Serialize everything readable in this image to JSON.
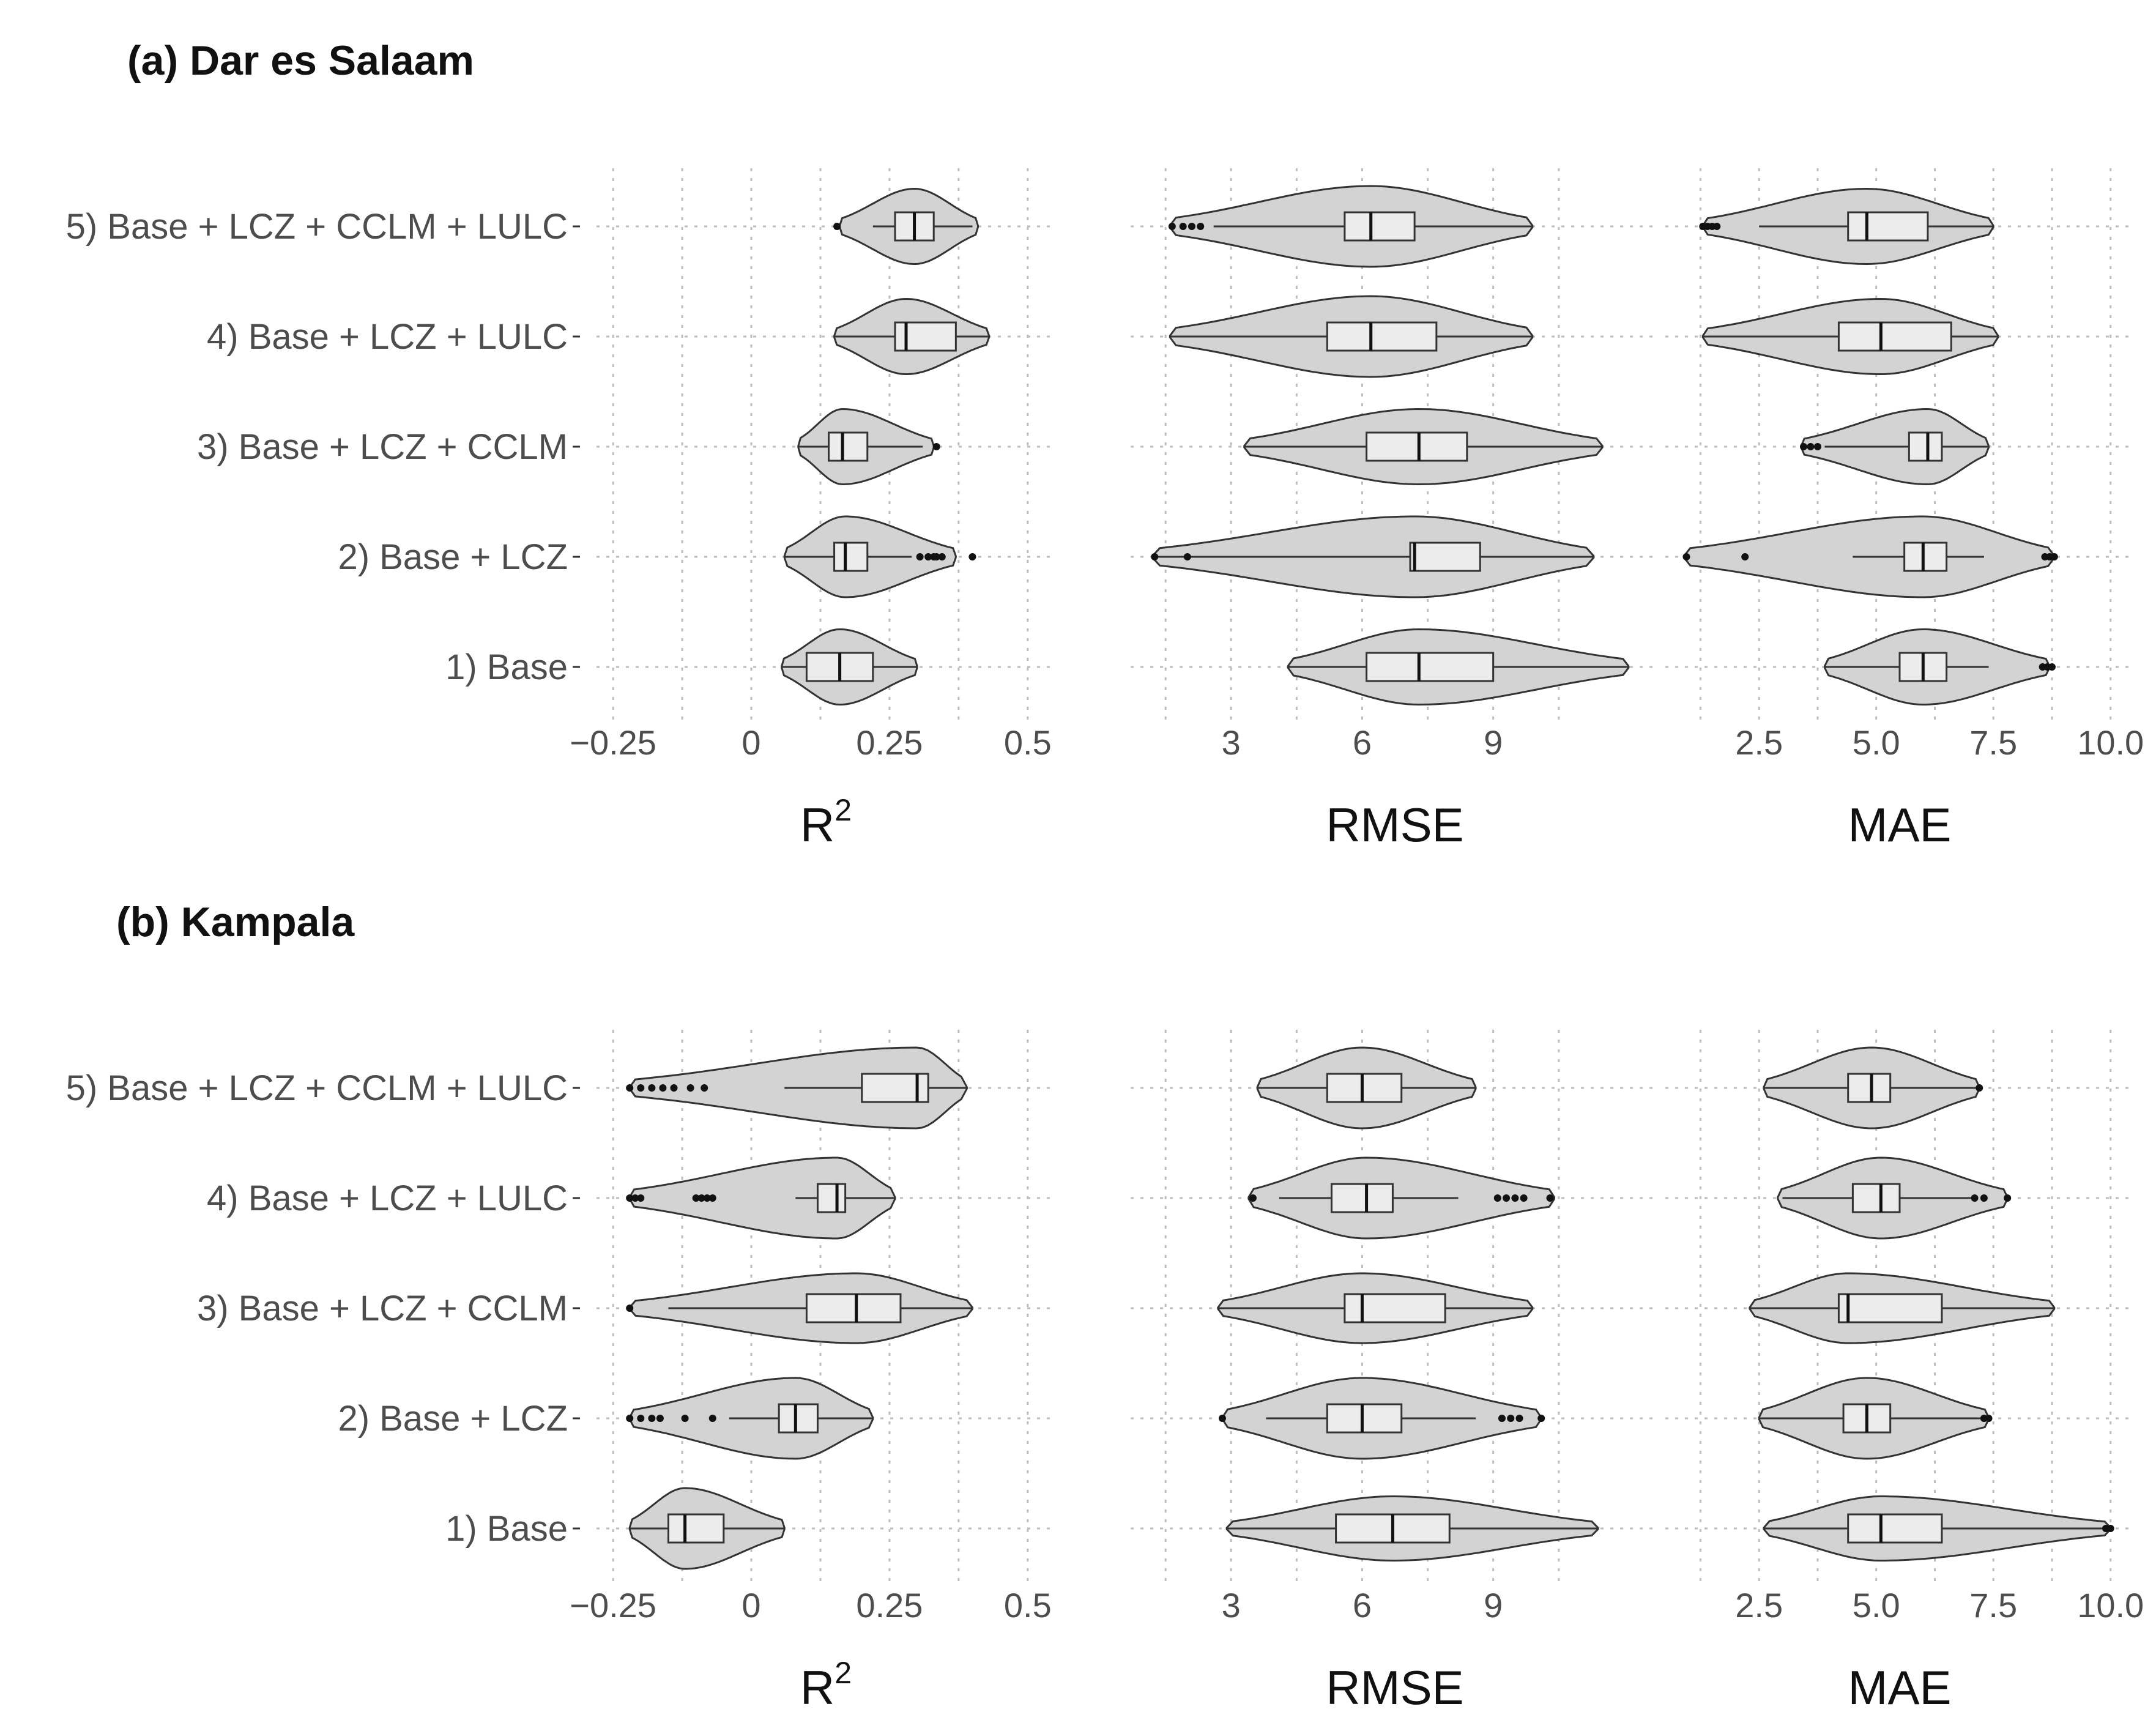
{
  "chart_data": [
    {
      "type": "violin",
      "title": "(a) Dar es Salaam",
      "categories": [
        "5) Base + LCZ + CCLM + LULC",
        "4) Base + LCZ + LULC",
        "3) Base + LCZ + CCLM",
        "2) Base + LCZ",
        "1) Base"
      ],
      "panels": [
        {
          "xlabel": "R",
          "xlabel_sup": "2",
          "xlim": [
            -0.28,
            0.55
          ],
          "ticks": [
            -0.25,
            0,
            0.25,
            0.5
          ],
          "tick_labels": [
            "−0.25",
            "0",
            "0.25",
            "0.5"
          ],
          "rows": [
            {
              "min": 0.16,
              "max": 0.41,
              "q1": 0.26,
              "median": 0.295,
              "q3": 0.33,
              "wlo": 0.22,
              "whi": 0.4,
              "width": 0.55,
              "outliers": [
                0.155
              ]
            },
            {
              "min": 0.15,
              "max": 0.43,
              "q1": 0.26,
              "median": 0.28,
              "q3": 0.37,
              "wlo": 0.15,
              "whi": 0.43,
              "width": 0.55
            },
            {
              "min": 0.085,
              "max": 0.33,
              "q1": 0.14,
              "median": 0.165,
              "q3": 0.21,
              "wlo": 0.085,
              "whi": 0.31,
              "width": 0.55,
              "outliers": [
                0.335
              ]
            },
            {
              "min": 0.06,
              "max": 0.37,
              "q1": 0.15,
              "median": 0.17,
              "q3": 0.21,
              "wlo": 0.06,
              "whi": 0.29,
              "width": 0.6,
              "outliers": [
                0.305,
                0.32,
                0.33,
                0.335,
                0.345,
                0.4
              ]
            },
            {
              "min": 0.055,
              "max": 0.3,
              "q1": 0.1,
              "median": 0.16,
              "q3": 0.22,
              "wlo": 0.055,
              "whi": 0.3,
              "width": 0.55
            }
          ]
        },
        {
          "xlabel": "RMSE",
          "xlabel_sup": "",
          "xlim": [
            0.7,
            12.8
          ],
          "ticks": [
            3,
            6,
            9
          ],
          "tick_labels": [
            "3",
            "6",
            "9"
          ],
          "rows": [
            {
              "min": 1.6,
              "max": 9.9,
              "q1": 5.6,
              "median": 6.2,
              "q3": 7.2,
              "wlo": 2.6,
              "whi": 9.9,
              "width": 0.6,
              "outliers": [
                1.65,
                1.9,
                2.1,
                2.3
              ]
            },
            {
              "min": 1.6,
              "max": 9.9,
              "q1": 5.2,
              "median": 6.2,
              "q3": 7.7,
              "wlo": 1.6,
              "whi": 9.9,
              "width": 0.6
            },
            {
              "min": 3.3,
              "max": 11.5,
              "q1": 6.1,
              "median": 7.3,
              "q3": 8.4,
              "wlo": 3.3,
              "whi": 11.5,
              "width": 0.55
            },
            {
              "min": 1.2,
              "max": 11.3,
              "q1": 7.1,
              "median": 7.2,
              "q3": 8.7,
              "wlo": 1.2,
              "whi": 11.3,
              "width": 0.6,
              "outliers": [
                1.25,
                2.0
              ]
            },
            {
              "min": 4.3,
              "max": 12.1,
              "q1": 6.1,
              "median": 7.3,
              "q3": 9.0,
              "wlo": 4.3,
              "whi": 12.1,
              "width": 0.55
            }
          ]
        },
        {
          "xlabel": "MAE",
          "xlabel_sup": "",
          "xlim": [
            0.5,
            10.5
          ],
          "ticks": [
            2.5,
            5.0,
            7.5,
            10.0
          ],
          "tick_labels": [
            "2.5",
            "5.0",
            "7.5",
            "10.0"
          ],
          "rows": [
            {
              "min": 1.3,
              "max": 7.5,
              "q1": 4.4,
              "median": 4.8,
              "q3": 6.1,
              "wlo": 2.5,
              "whi": 7.5,
              "width": 0.55,
              "outliers": [
                1.3,
                1.4,
                1.5,
                1.6
              ]
            },
            {
              "min": 1.3,
              "max": 7.6,
              "q1": 4.2,
              "median": 5.1,
              "q3": 6.6,
              "wlo": 1.3,
              "whi": 7.6,
              "width": 0.55
            },
            {
              "min": 3.4,
              "max": 7.4,
              "q1": 5.7,
              "median": 6.1,
              "q3": 6.4,
              "wlo": 3.9,
              "whi": 7.4,
              "width": 0.55,
              "outliers": [
                3.45,
                3.6,
                3.75
              ]
            },
            {
              "min": 0.9,
              "max": 8.8,
              "q1": 5.6,
              "median": 6.0,
              "q3": 6.5,
              "wlo": 4.5,
              "whi": 7.3,
              "width": 0.6,
              "outliers": [
                0.95,
                2.2,
                8.6,
                8.7,
                8.8
              ]
            },
            {
              "min": 3.9,
              "max": 8.7,
              "q1": 5.5,
              "median": 6.0,
              "q3": 6.5,
              "wlo": 3.9,
              "whi": 7.4,
              "width": 0.55,
              "outliers": [
                8.55,
                8.65,
                8.75
              ]
            }
          ]
        }
      ]
    },
    {
      "type": "violin",
      "title": "(b) Kampala",
      "categories": [
        "5) Base + LCZ + CCLM + LULC",
        "4) Base + LCZ + LULC",
        "3) Base + LCZ + CCLM",
        "2) Base + LCZ",
        "1) Base"
      ],
      "panels": [
        {
          "xlabel": "R",
          "xlabel_sup": "2",
          "xlim": [
            -0.28,
            0.55
          ],
          "ticks": [
            -0.25,
            0,
            0.25,
            0.5
          ],
          "tick_labels": [
            "−0.25",
            "0",
            "0.25",
            "0.5"
          ],
          "rows": [
            {
              "min": -0.22,
              "max": 0.39,
              "q1": 0.2,
              "median": 0.3,
              "q3": 0.32,
              "wlo": 0.06,
              "whi": 0.39,
              "width": 0.6,
              "outliers": [
                -0.22,
                -0.2,
                -0.18,
                -0.16,
                -0.14,
                -0.11,
                -0.085
              ]
            },
            {
              "min": -0.22,
              "max": 0.26,
              "q1": 0.12,
              "median": 0.155,
              "q3": 0.17,
              "wlo": 0.08,
              "whi": 0.26,
              "width": 0.6,
              "outliers": [
                -0.22,
                -0.21,
                -0.2,
                -0.1,
                -0.09,
                -0.08,
                -0.07
              ]
            },
            {
              "min": -0.22,
              "max": 0.4,
              "q1": 0.1,
              "median": 0.19,
              "q3": 0.27,
              "wlo": -0.15,
              "whi": 0.4,
              "width": 0.5,
              "outliers": [
                -0.22
              ]
            },
            {
              "min": -0.22,
              "max": 0.22,
              "q1": 0.05,
              "median": 0.08,
              "q3": 0.12,
              "wlo": -0.04,
              "whi": 0.22,
              "width": 0.6,
              "outliers": [
                -0.22,
                -0.2,
                -0.18,
                -0.165,
                -0.12,
                -0.07
              ]
            },
            {
              "min": -0.22,
              "max": 0.06,
              "q1": -0.15,
              "median": -0.12,
              "q3": -0.05,
              "wlo": -0.22,
              "whi": 0.06,
              "width": 0.6
            }
          ]
        },
        {
          "xlabel": "RMSE",
          "xlabel_sup": "",
          "xlim": [
            0.7,
            12.8
          ],
          "ticks": [
            3,
            6,
            9
          ],
          "tick_labels": [
            "3",
            "6",
            "9"
          ],
          "rows": [
            {
              "min": 3.6,
              "max": 8.6,
              "q1": 5.2,
              "median": 6.0,
              "q3": 6.9,
              "wlo": 3.6,
              "whi": 8.6,
              "width": 0.6
            },
            {
              "min": 3.4,
              "max": 10.4,
              "q1": 5.3,
              "median": 6.1,
              "q3": 6.7,
              "wlo": 4.1,
              "whi": 8.2,
              "width": 0.6,
              "outliers": [
                3.5,
                9.1,
                9.3,
                9.5,
                9.7,
                10.3
              ]
            },
            {
              "min": 2.7,
              "max": 9.9,
              "q1": 5.6,
              "median": 6.0,
              "q3": 7.9,
              "wlo": 2.7,
              "whi": 9.9,
              "width": 0.5
            },
            {
              "min": 2.8,
              "max": 10.1,
              "q1": 5.2,
              "median": 6.0,
              "q3": 6.9,
              "wlo": 3.8,
              "whi": 8.6,
              "width": 0.6,
              "outliers": [
                2.8,
                9.2,
                9.4,
                9.6,
                10.1
              ]
            },
            {
              "min": 2.9,
              "max": 11.4,
              "q1": 5.4,
              "median": 6.7,
              "q3": 8.0,
              "wlo": 2.9,
              "whi": 11.4,
              "width": 0.45
            }
          ]
        },
        {
          "xlabel": "MAE",
          "xlabel_sup": "",
          "xlim": [
            0.5,
            10.5
          ],
          "ticks": [
            2.5,
            5.0,
            7.5,
            10.0
          ],
          "tick_labels": [
            "2.5",
            "5.0",
            "7.5",
            "10.0"
          ],
          "rows": [
            {
              "min": 2.6,
              "max": 7.2,
              "q1": 4.4,
              "median": 4.9,
              "q3": 5.3,
              "wlo": 2.6,
              "whi": 7.2,
              "width": 0.6,
              "outliers": [
                7.2
              ]
            },
            {
              "min": 2.9,
              "max": 7.8,
              "q1": 4.5,
              "median": 5.1,
              "q3": 5.5,
              "wlo": 3.0,
              "whi": 7.1,
              "width": 0.6,
              "outliers": [
                7.1,
                7.3,
                7.8
              ]
            },
            {
              "min": 2.3,
              "max": 8.8,
              "q1": 4.2,
              "median": 4.4,
              "q3": 6.4,
              "wlo": 2.3,
              "whi": 8.8,
              "width": 0.5
            },
            {
              "min": 2.5,
              "max": 7.4,
              "q1": 4.3,
              "median": 4.8,
              "q3": 5.3,
              "wlo": 2.5,
              "whi": 7.3,
              "width": 0.6,
              "outliers": [
                7.3,
                7.4
              ]
            },
            {
              "min": 2.6,
              "max": 10.0,
              "q1": 4.4,
              "median": 5.1,
              "q3": 6.4,
              "wlo": 2.6,
              "whi": 9.9,
              "width": 0.45,
              "outliers": [
                9.9,
                10.0
              ]
            }
          ]
        }
      ]
    }
  ]
}
